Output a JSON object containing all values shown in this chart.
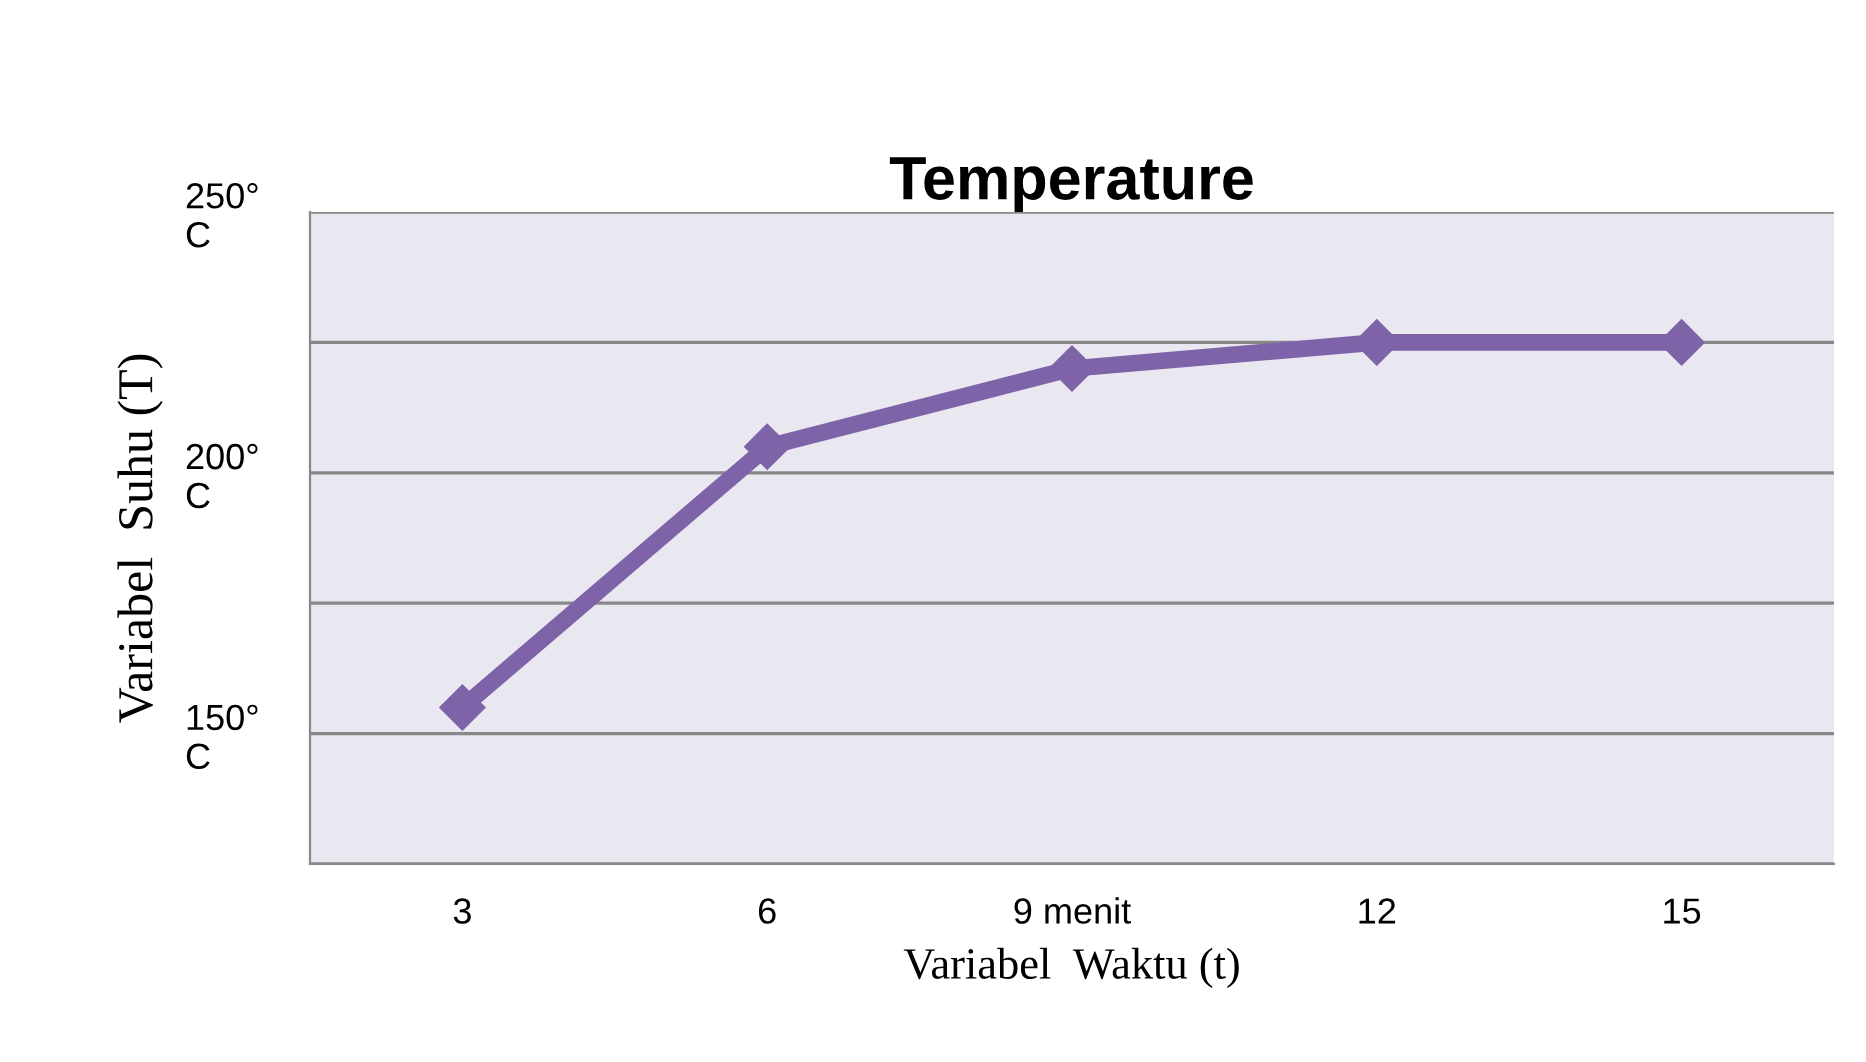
{
  "chart_data": {
    "type": "line",
    "title": "Temperature",
    "xlabel": "Variabel  Waktu (t)",
    "ylabel": "Variabel  Suhu (T)",
    "categories": [
      "3",
      "6",
      "9 menit",
      "12",
      "15"
    ],
    "series": [
      {
        "color": "#7f63a8",
        "values": [
          155,
          205,
          220,
          225,
          225
        ]
      }
    ],
    "ylim": [
      125,
      250
    ],
    "yticks": [
      {
        "value": 125,
        "label": null
      },
      {
        "value": 150,
        "label": "150°\nC"
      },
      {
        "value": 175,
        "label": null
      },
      {
        "value": 200,
        "label": "200°\nC"
      },
      {
        "value": 225,
        "label": null
      },
      {
        "value": 250,
        "label": "250°\nC"
      }
    ],
    "grid": "y",
    "marker": "diamond",
    "line_style": "solid",
    "legend": false
  }
}
